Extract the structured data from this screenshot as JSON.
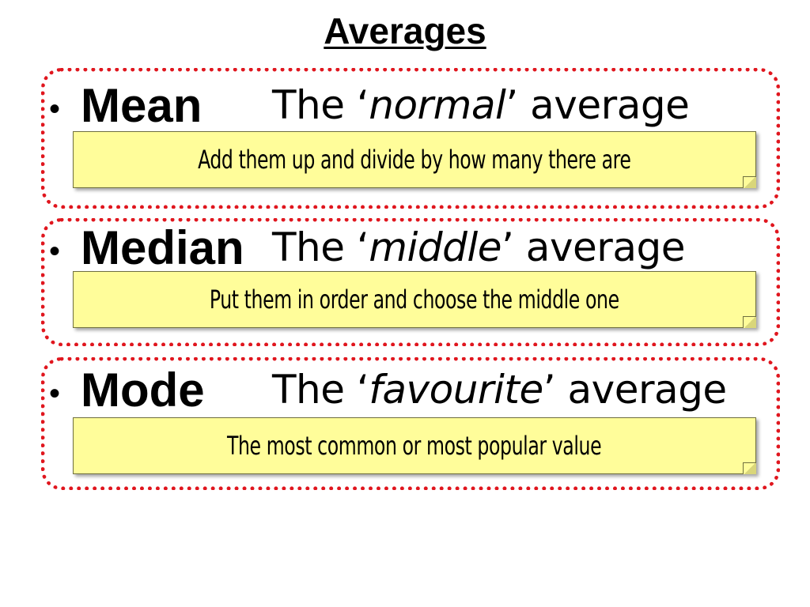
{
  "title": "Averages",
  "bullet": "•",
  "sections": [
    {
      "term": "Mean",
      "desc_prefix": "The ‘",
      "desc_keyword": "normal",
      "desc_suffix": "’ average",
      "note": "Add them up and divide by how many there are"
    },
    {
      "term": "Median",
      "desc_prefix": "The ‘",
      "desc_keyword": "middle",
      "desc_suffix": "’ average",
      "note": "Put them in order and choose the middle one"
    },
    {
      "term": "Mode",
      "desc_prefix": "The ‘",
      "desc_keyword": "favourite",
      "desc_suffix": "’ average",
      "note": "The most common or most popular value"
    }
  ],
  "colors": {
    "border": "#e0161e",
    "note_background": "#fffd9a"
  }
}
